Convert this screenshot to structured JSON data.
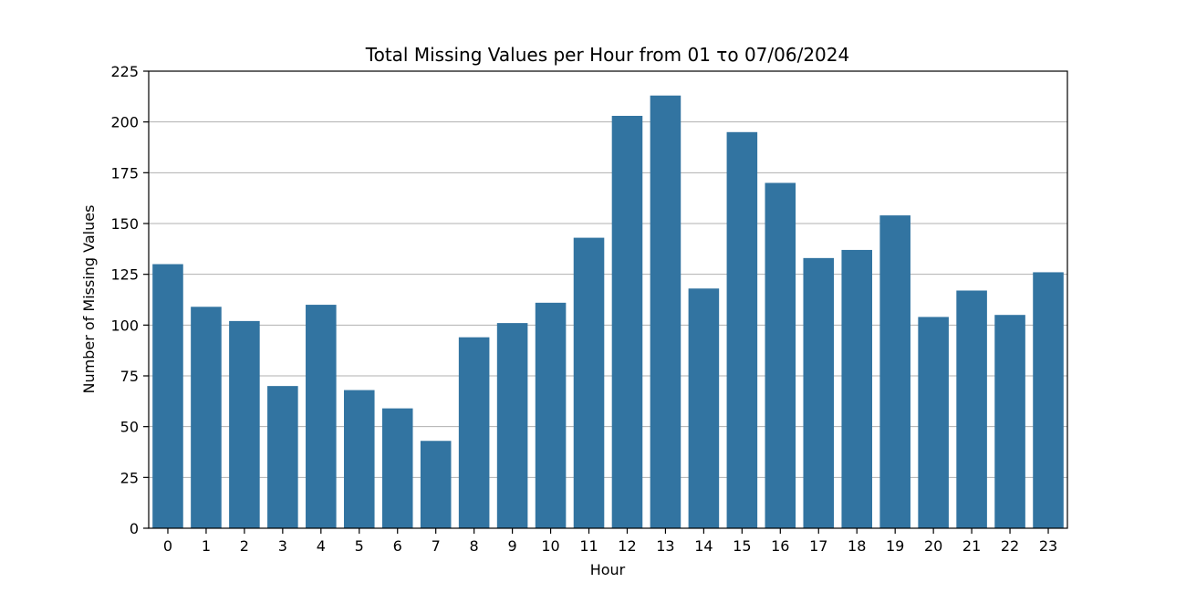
{
  "chart_data": {
    "type": "bar",
    "title": "Total Missing Values per Hour from 01 το 07/06/2024",
    "xlabel": "Hour",
    "ylabel": "Number of Missing Values",
    "categories": [
      "0",
      "1",
      "2",
      "3",
      "4",
      "5",
      "6",
      "7",
      "8",
      "9",
      "10",
      "11",
      "12",
      "13",
      "14",
      "15",
      "16",
      "17",
      "18",
      "19",
      "20",
      "21",
      "22",
      "23"
    ],
    "values": [
      130,
      109,
      102,
      70,
      110,
      68,
      59,
      43,
      94,
      101,
      111,
      143,
      203,
      213,
      118,
      195,
      170,
      133,
      137,
      154,
      104,
      117,
      105,
      126
    ],
    "ylim": [
      0,
      225
    ],
    "yticks": [
      0,
      25,
      50,
      75,
      100,
      125,
      150,
      175,
      200,
      225
    ],
    "grid": "y",
    "bar_color": "#3274a1",
    "legend": "none"
  }
}
